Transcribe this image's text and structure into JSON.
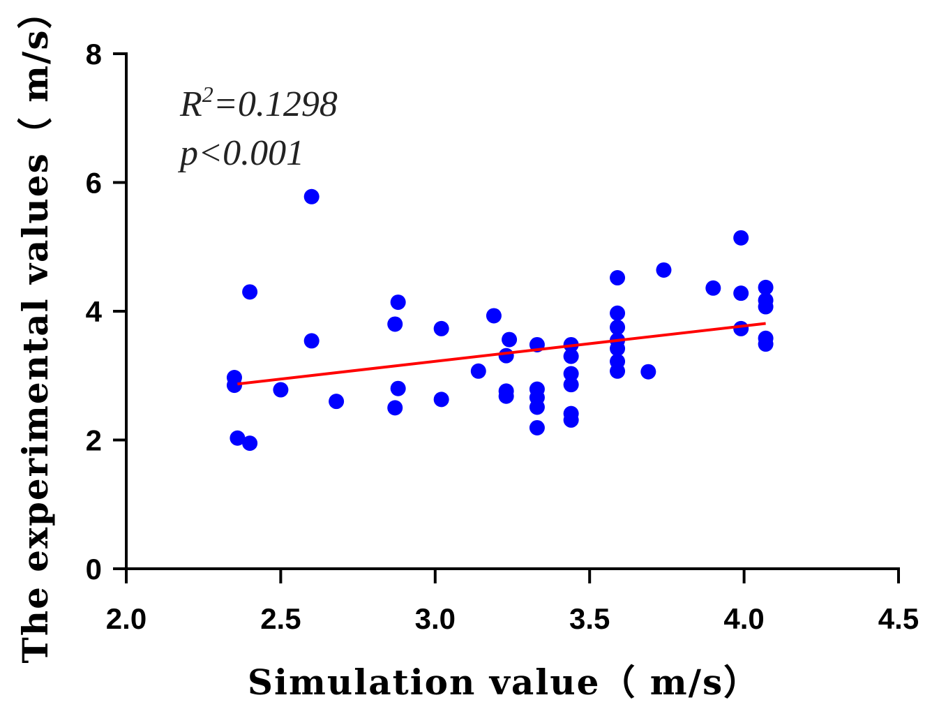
{
  "chart_data": {
    "type": "scatter",
    "xlabel": "Simulation value（ m/s）",
    "ylabel": "The experimental values（ m/s）",
    "xlim": [
      2.0,
      4.5
    ],
    "ylim": [
      0,
      8
    ],
    "xticks": [
      "2.0",
      "2.5",
      "3.0",
      "3.5",
      "4.0",
      "4.5"
    ],
    "yticks": [
      "0",
      "2",
      "4",
      "6",
      "8"
    ],
    "grid": false,
    "annotation": {
      "r2_symbol": "R",
      "r2_power": "2",
      "r2_value": "=0.1298",
      "p_text": "p<0.001"
    },
    "point_color": "#0000ff",
    "line_color": "#ff0000",
    "fit_line": {
      "x": [
        2.36,
        4.07
      ],
      "y": [
        2.87,
        3.81
      ]
    },
    "points": [
      {
        "x": 2.35,
        "y": 2.97
      },
      {
        "x": 2.35,
        "y": 2.85
      },
      {
        "x": 2.36,
        "y": 2.03
      },
      {
        "x": 2.4,
        "y": 1.95
      },
      {
        "x": 2.4,
        "y": 4.3
      },
      {
        "x": 2.5,
        "y": 2.78
      },
      {
        "x": 2.6,
        "y": 5.78
      },
      {
        "x": 2.6,
        "y": 3.54
      },
      {
        "x": 2.68,
        "y": 2.6
      },
      {
        "x": 2.87,
        "y": 3.8
      },
      {
        "x": 2.88,
        "y": 4.14
      },
      {
        "x": 2.88,
        "y": 2.8
      },
      {
        "x": 2.87,
        "y": 2.5
      },
      {
        "x": 3.02,
        "y": 3.73
      },
      {
        "x": 3.02,
        "y": 2.63
      },
      {
        "x": 3.14,
        "y": 3.07
      },
      {
        "x": 3.19,
        "y": 3.93
      },
      {
        "x": 3.24,
        "y": 3.56
      },
      {
        "x": 3.23,
        "y": 3.31
      },
      {
        "x": 3.23,
        "y": 2.76
      },
      {
        "x": 3.23,
        "y": 2.68
      },
      {
        "x": 3.33,
        "y": 3.48
      },
      {
        "x": 3.33,
        "y": 2.79
      },
      {
        "x": 3.33,
        "y": 2.66
      },
      {
        "x": 3.33,
        "y": 2.51
      },
      {
        "x": 3.33,
        "y": 2.19
      },
      {
        "x": 3.44,
        "y": 3.48
      },
      {
        "x": 3.44,
        "y": 3.3
      },
      {
        "x": 3.44,
        "y": 3.03
      },
      {
        "x": 3.44,
        "y": 2.86
      },
      {
        "x": 3.44,
        "y": 2.41
      },
      {
        "x": 3.44,
        "y": 2.31
      },
      {
        "x": 3.59,
        "y": 4.52
      },
      {
        "x": 3.59,
        "y": 3.97
      },
      {
        "x": 3.59,
        "y": 3.75
      },
      {
        "x": 3.59,
        "y": 3.55
      },
      {
        "x": 3.59,
        "y": 3.42
      },
      {
        "x": 3.59,
        "y": 3.22
      },
      {
        "x": 3.59,
        "y": 3.07
      },
      {
        "x": 3.69,
        "y": 3.06
      },
      {
        "x": 3.74,
        "y": 4.64
      },
      {
        "x": 3.9,
        "y": 4.36
      },
      {
        "x": 3.99,
        "y": 5.14
      },
      {
        "x": 3.99,
        "y": 4.28
      },
      {
        "x": 3.99,
        "y": 3.73
      },
      {
        "x": 4.07,
        "y": 4.37
      },
      {
        "x": 4.07,
        "y": 4.17
      },
      {
        "x": 4.07,
        "y": 4.07
      },
      {
        "x": 4.07,
        "y": 3.58
      },
      {
        "x": 4.07,
        "y": 3.49
      }
    ]
  }
}
